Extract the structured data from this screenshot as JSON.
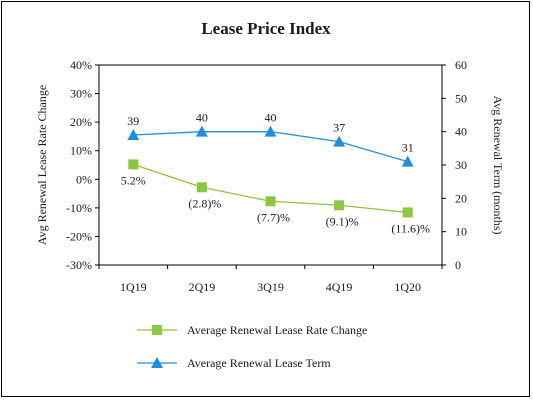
{
  "chart_data": {
    "type": "line",
    "title": "Lease Price Index",
    "categories": [
      "1Q19",
      "2Q19",
      "3Q19",
      "4Q19",
      "1Q20"
    ],
    "series": [
      {
        "name": "Average Renewal Lease Rate Change",
        "axis": "left",
        "values": [
          5.2,
          -2.8,
          -7.7,
          -9.1,
          -11.6
        ],
        "labels": [
          "5.2%",
          "(2.8)%",
          "(7.7)%",
          "(9.1)%",
          "(11.6)%"
        ],
        "color": "#8dc63f",
        "marker": "square"
      },
      {
        "name": "Average Renewal Lease Term",
        "axis": "right",
        "values": [
          39,
          40,
          40,
          37,
          31
        ],
        "labels": [
          "39",
          "40",
          "40",
          "37",
          "31"
        ],
        "color": "#1f8fdb",
        "marker": "triangle"
      }
    ],
    "ylabel_left": "Avg Renewal Lease Rate Change",
    "ylabel_right": "Avg Renewal Term (months)",
    "ylim_left": [
      -30,
      40
    ],
    "ylim_right": [
      0,
      60
    ],
    "yticks_left": [
      "40%",
      "30%",
      "20%",
      "10%",
      "0%",
      "-10%",
      "-20%",
      "-30%"
    ],
    "yticks_right": [
      "60",
      "50",
      "40",
      "30",
      "20",
      "10",
      "0"
    ],
    "legend": "bottom",
    "grid": false
  }
}
